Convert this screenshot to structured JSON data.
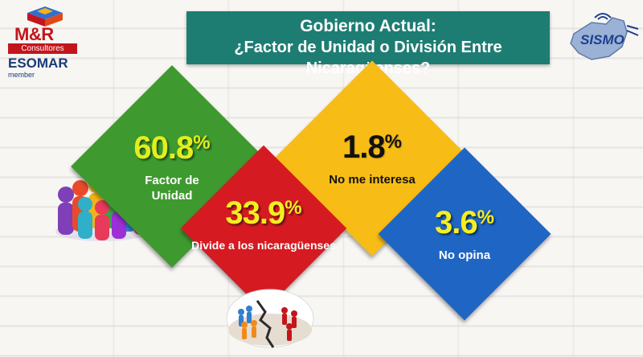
{
  "header": {
    "title_line1": "Gobierno Actual:",
    "title_line2": "¿Factor de Unidad o División Entre Nicaragüenses?"
  },
  "logos": {
    "left": {
      "name": "M&R",
      "subtitle": "Consultores",
      "affiliation": "ESOMAR",
      "affiliation_sub": "member"
    },
    "right": {
      "name": "SISMO"
    }
  },
  "chart_data": {
    "type": "diamond-infographic",
    "title": "Gobierno Actual: ¿Factor de Unidad o División Entre Nicaragüenses?",
    "unit": "%",
    "categories": [
      "Factor de Unidad",
      "No me interesa",
      "Divide a los nicaragüenses",
      "No opina"
    ],
    "values": [
      60.8,
      1.8,
      33.9,
      3.6
    ],
    "items": [
      {
        "number": "60.8",
        "percent_sign": "%",
        "label_line1": "Factor de",
        "label_line2": "Unidad",
        "color": "#3e9a2f",
        "value_color": "#e2ee1e"
      },
      {
        "number": "1.8",
        "percent_sign": "%",
        "label_line1": "No me interesa",
        "label_line2": "",
        "color": "#f7bd16",
        "value_color": "#111111"
      },
      {
        "number": "33.9",
        "percent_sign": "%",
        "label_line1": "Divide a los nicaragüenses",
        "label_line2": "",
        "color": "#d61a21",
        "value_color": "#f4ee22"
      },
      {
        "number": "3.6",
        "percent_sign": "%",
        "label_line1": "No opina",
        "label_line2": "",
        "color": "#1f66c4",
        "value_color": "#f6ee22"
      }
    ]
  },
  "illustrations": {
    "unity": "people-circle-icon",
    "division": "cracked-ground-icon"
  }
}
